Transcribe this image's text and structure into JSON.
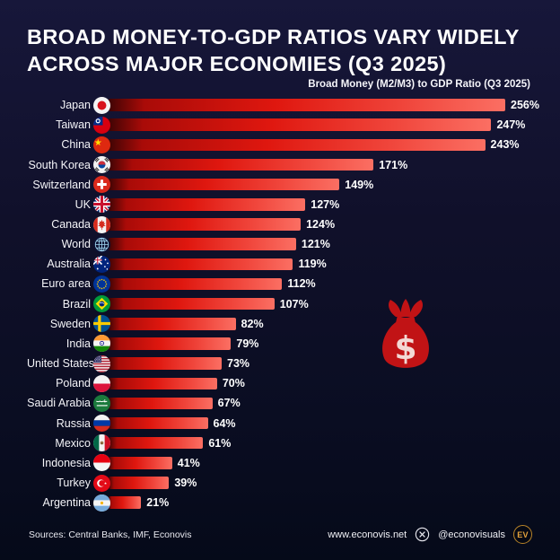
{
  "header": {
    "title_line1": "Broad Money-to-GDP ratios vary widely",
    "title_line2": "across major economies (Q3 2025)",
    "subtitle": "Broad Money (M2/M3) to GDP Ratio (Q3 2025)"
  },
  "footer": {
    "sources": "Sources: Central Banks, IMF, Econovis",
    "website": "www.econovis.net",
    "social_icon": "x-icon",
    "social_handle": "@econovisuals",
    "logo_text": "EV"
  },
  "icons": {
    "money_bag": "money-bag-icon",
    "dollar_glyph": "$"
  },
  "colors": {
    "background": "#10102a",
    "bar_dark": "#3f0404",
    "bar_red": "#df170f",
    "bar_light": "#fb6f63",
    "money_bag_red": "#c11315",
    "logo_gold": "#e5a33c",
    "text": "#ffffff"
  },
  "chart_data": {
    "type": "bar",
    "orientation": "horizontal",
    "title": "Broad Money (M2/M3) to GDP Ratio (Q3 2025)",
    "unit": "%",
    "xlim": [
      0,
      256
    ],
    "grid": false,
    "legend": null,
    "categories": [
      "Japan",
      "Taiwan",
      "China",
      "South Korea",
      "Switzerland",
      "UK",
      "Canada",
      "World",
      "Australia",
      "Euro area",
      "Brazil",
      "Sweden",
      "India",
      "United States",
      "Poland",
      "Saudi Arabia",
      "Russia",
      "Mexico",
      "Indonesia",
      "Turkey",
      "Argentina"
    ],
    "values": [
      256,
      247,
      243,
      171,
      149,
      127,
      124,
      121,
      119,
      112,
      107,
      82,
      79,
      73,
      70,
      67,
      64,
      61,
      41,
      39,
      21
    ],
    "value_labels": [
      "256%",
      "247%",
      "243%",
      "171%",
      "149%",
      "127%",
      "124%",
      "121%",
      "119%",
      "112%",
      "107%",
      "82%",
      "79%",
      "73%",
      "70%",
      "67%",
      "64%",
      "61%",
      "41%",
      "39%",
      "21%"
    ],
    "flags": [
      "japan",
      "taiwan",
      "china",
      "south-korea",
      "switzerland",
      "uk",
      "canada",
      "world",
      "australia",
      "euro-area",
      "brazil",
      "sweden",
      "india",
      "united-states",
      "poland",
      "saudi-arabia",
      "russia",
      "mexico",
      "indonesia",
      "turkey",
      "argentina"
    ]
  }
}
